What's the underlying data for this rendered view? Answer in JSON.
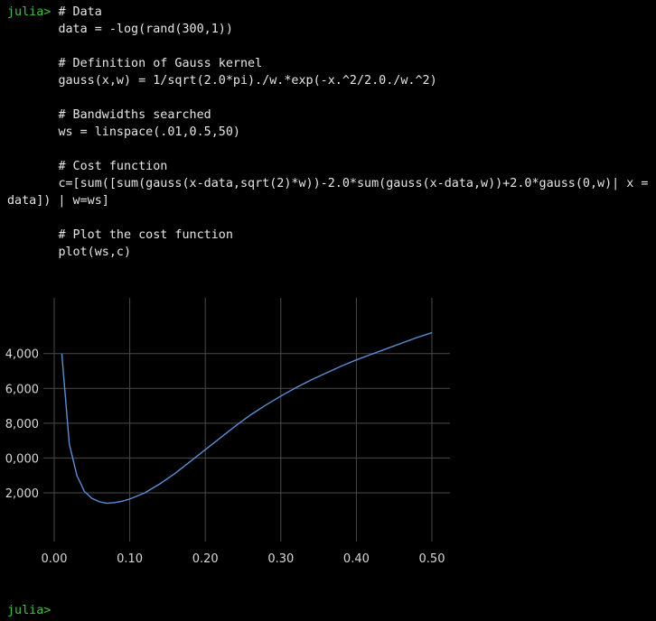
{
  "terminal": {
    "prompt": "julia>",
    "lines": [
      "# Data",
      "data = -log(rand(300,1))",
      "",
      "# Definition of Gauss kernel",
      "gauss(x,w) = 1/sqrt(2.0*pi)./w.*exp(-x.^2/2.0./w.^2)",
      "",
      "# Bandwidths searched",
      "ws = linspace(.01,0.5,50)",
      "",
      "# Cost function",
      "c=[sum([sum(gauss(x-data,sqrt(2)*w))-2.0*sum(gauss(x-data,w))+2.0*gauss(0,w)| x =",
      "data]) | w=ws]",
      "",
      "# Plot the cost function",
      "plot(ws,c)"
    ],
    "final_prompt": "julia>"
  },
  "colors": {
    "prompt": "#3fc23f",
    "line": "#5b8fd6",
    "grid": "#4a4a4a"
  },
  "chart_data": {
    "type": "line",
    "title": "",
    "xlabel": "",
    "ylabel": "",
    "x_ticks": [
      "0.00",
      "0.10",
      "0.20",
      "0.30",
      "0.40",
      "0.50"
    ],
    "y_ticks_visible": [
      ",000",
      ",000",
      ",000",
      ",000",
      ",000"
    ],
    "y_tick_first_chars": [
      "4",
      "6",
      "8",
      "0",
      "2"
    ],
    "xlim": [
      0.0,
      0.5
    ],
    "ylim": [
      -2.7,
      0.8
    ],
    "grid": true,
    "series": [
      {
        "name": "c",
        "x": [
          0.01,
          0.02,
          0.03,
          0.04,
          0.05,
          0.06,
          0.07,
          0.08,
          0.09,
          0.1,
          0.12,
          0.14,
          0.16,
          0.18,
          0.2,
          0.22,
          0.24,
          0.26,
          0.28,
          0.3,
          0.32,
          0.34,
          0.36,
          0.38,
          0.4,
          0.42,
          0.44,
          0.46,
          0.48,
          0.5
        ],
        "y": [
          0.0,
          -1.3,
          -1.75,
          -1.98,
          -2.08,
          -2.13,
          -2.15,
          -2.14,
          -2.12,
          -2.09,
          -2.0,
          -1.87,
          -1.72,
          -1.55,
          -1.38,
          -1.21,
          -1.04,
          -0.88,
          -0.74,
          -0.61,
          -0.49,
          -0.38,
          -0.28,
          -0.18,
          -0.09,
          -0.01,
          0.07,
          0.15,
          0.23,
          0.3
        ]
      }
    ]
  }
}
